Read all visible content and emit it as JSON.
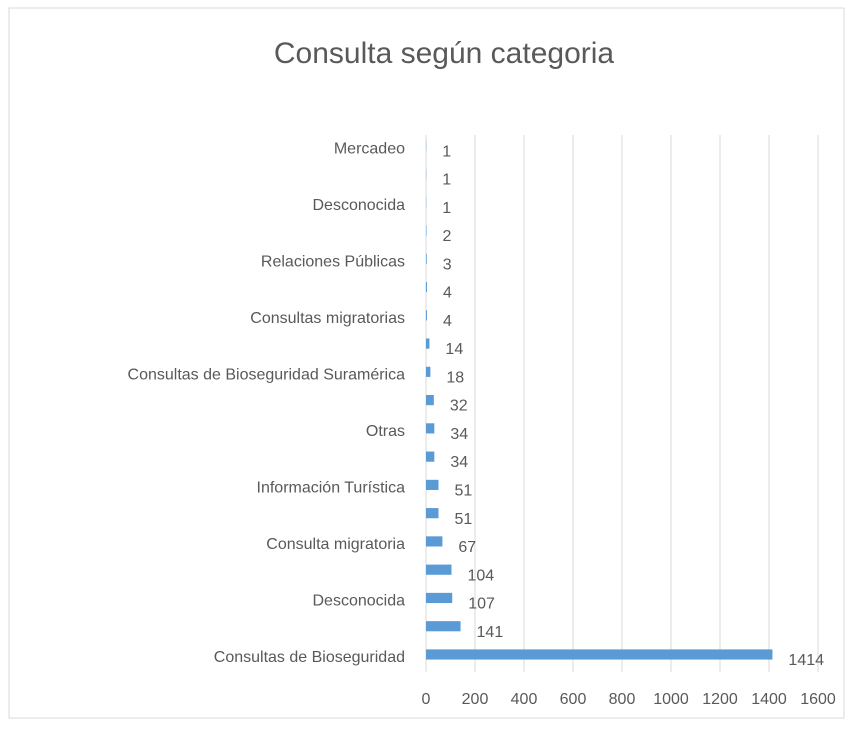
{
  "chart_data": {
    "type": "barh",
    "title": "Consulta según categoria",
    "categories": [
      "Consultas de Bioseguridad",
      null,
      "Desconocida",
      null,
      "Consulta migratoria",
      null,
      "Información Turística",
      null,
      "Otras",
      null,
      "Consultas de Bioseguridad Suramérica",
      null,
      "Consultas migratorias",
      null,
      "Relaciones Públicas",
      null,
      "Desconocida",
      null,
      "Mercadeo"
    ],
    "values": [
      1414,
      141,
      107,
      104,
      67,
      51,
      51,
      34,
      34,
      32,
      18,
      14,
      4,
      4,
      3,
      2,
      1,
      1,
      1
    ],
    "color": "#5b9bd5",
    "xlim": [
      0,
      1600
    ],
    "xticks": [
      0,
      200,
      400,
      600,
      800,
      1000,
      1200,
      1400,
      1600
    ],
    "grid": true
  }
}
